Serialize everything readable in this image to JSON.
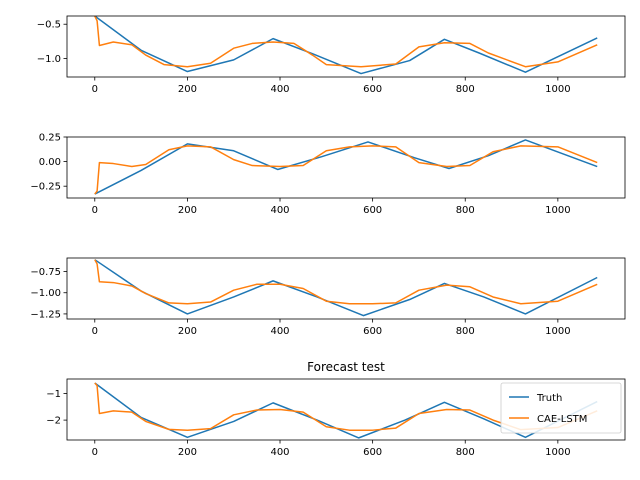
{
  "chart_data": [
    {
      "type": "line",
      "title": "",
      "xlim": [
        -60,
        1145
      ],
      "ylim": [
        -1.27,
        -0.38
      ],
      "xticks": [
        0,
        200,
        400,
        600,
        800,
        1000
      ],
      "yticks": [
        -0.5,
        -1.0
      ],
      "ytick_labels": [
        "−0.5",
        "−1.0"
      ],
      "series": [
        {
          "name": "Truth",
          "color": "#1f77b4",
          "x": [
            0,
            100,
            200,
            300,
            385,
            470,
            575,
            680,
            755,
            830,
            930,
            1085
          ],
          "y": [
            -0.38,
            -0.88,
            -1.19,
            -1.02,
            -0.71,
            -0.93,
            -1.22,
            -1.03,
            -0.72,
            -0.92,
            -1.2,
            -0.7
          ]
        },
        {
          "name": "CAE-LSTM",
          "color": "#ff7f0e",
          "x": [
            0,
            5,
            10,
            40,
            80,
            110,
            150,
            200,
            250,
            300,
            340,
            385,
            430,
            470,
            500,
            575,
            650,
            700,
            755,
            810,
            850,
            930,
            1000,
            1085
          ],
          "y": [
            -0.38,
            -0.45,
            -0.81,
            -0.76,
            -0.8,
            -0.95,
            -1.09,
            -1.12,
            -1.07,
            -0.85,
            -0.78,
            -0.76,
            -0.78,
            -0.95,
            -1.09,
            -1.12,
            -1.08,
            -0.83,
            -0.77,
            -0.78,
            -0.92,
            -1.12,
            -1.05,
            -0.8
          ]
        }
      ]
    },
    {
      "type": "line",
      "title": "",
      "xlim": [
        -60,
        1145
      ],
      "ylim": [
        -0.37,
        0.25
      ],
      "xticks": [
        0,
        200,
        400,
        600,
        800,
        1000
      ],
      "yticks": [
        0.25,
        0.0,
        -0.25
      ],
      "ytick_labels": [
        "0.25",
        "0.00",
        "−0.25"
      ],
      "series": [
        {
          "name": "Truth",
          "color": "#1f77b4",
          "x": [
            0,
            100,
            200,
            300,
            395,
            490,
            590,
            690,
            765,
            850,
            930,
            1085
          ],
          "y": [
            -0.33,
            -0.09,
            0.18,
            0.11,
            -0.08,
            0.05,
            0.2,
            0.04,
            -0.07,
            0.06,
            0.22,
            -0.05
          ]
        },
        {
          "name": "CAE-LSTM",
          "color": "#ff7f0e",
          "x": [
            0,
            5,
            10,
            40,
            80,
            110,
            160,
            200,
            250,
            300,
            340,
            400,
            450,
            500,
            550,
            600,
            650,
            700,
            760,
            810,
            860,
            920,
            1000,
            1085
          ],
          "y": [
            -0.33,
            -0.3,
            -0.01,
            -0.02,
            -0.05,
            -0.03,
            0.12,
            0.16,
            0.15,
            0.02,
            -0.04,
            -0.05,
            -0.04,
            0.11,
            0.15,
            0.16,
            0.15,
            -0.01,
            -0.05,
            -0.04,
            0.1,
            0.16,
            0.15,
            -0.01
          ]
        }
      ]
    },
    {
      "type": "line",
      "title": "",
      "xlim": [
        -60,
        1145
      ],
      "ylim": [
        -1.31,
        -0.59
      ],
      "xticks": [
        0,
        200,
        400,
        600,
        800,
        1000
      ],
      "yticks": [
        -0.75,
        -1.0,
        -1.25
      ],
      "ytick_labels": [
        "−0.75",
        "−1.00",
        "−1.25"
      ],
      "series": [
        {
          "name": "Truth",
          "color": "#1f77b4",
          "x": [
            0,
            100,
            200,
            300,
            385,
            480,
            580,
            680,
            755,
            840,
            930,
            1085
          ],
          "y": [
            -0.61,
            -0.98,
            -1.25,
            -1.05,
            -0.86,
            -1.05,
            -1.27,
            -1.08,
            -0.89,
            -1.05,
            -1.25,
            -0.82
          ]
        },
        {
          "name": "CAE-LSTM",
          "color": "#ff7f0e",
          "x": [
            0,
            5,
            10,
            40,
            80,
            110,
            160,
            200,
            250,
            300,
            350,
            400,
            450,
            500,
            550,
            600,
            650,
            700,
            760,
            810,
            860,
            920,
            1000,
            1085
          ],
          "y": [
            -0.61,
            -0.66,
            -0.87,
            -0.88,
            -0.92,
            -1.01,
            -1.12,
            -1.13,
            -1.11,
            -0.97,
            -0.9,
            -0.9,
            -0.95,
            -1.1,
            -1.13,
            -1.13,
            -1.12,
            -0.97,
            -0.91,
            -0.93,
            -1.05,
            -1.13,
            -1.1,
            -0.9
          ]
        }
      ]
    },
    {
      "type": "line",
      "title": "Forecast test",
      "xlim": [
        -60,
        1145
      ],
      "ylim": [
        -2.75,
        -0.45
      ],
      "xticks": [
        0,
        200,
        400,
        600,
        800,
        1000
      ],
      "yticks": [
        -1,
        -2
      ],
      "ytick_labels": [
        "−1",
        "−2"
      ],
      "legend": "right",
      "series": [
        {
          "name": "Truth",
          "color": "#1f77b4",
          "x": [
            0,
            100,
            200,
            300,
            385,
            480,
            570,
            670,
            755,
            840,
            930,
            1085
          ],
          "y": [
            -0.6,
            -1.9,
            -2.65,
            -2.05,
            -1.35,
            -2.0,
            -2.67,
            -2.0,
            -1.33,
            -1.95,
            -2.65,
            -1.3
          ]
        },
        {
          "name": "CAE-LSTM",
          "color": "#ff7f0e",
          "x": [
            0,
            5,
            10,
            40,
            80,
            110,
            160,
            200,
            250,
            300,
            350,
            400,
            450,
            500,
            550,
            600,
            650,
            700,
            760,
            810,
            860,
            920,
            1000,
            1085
          ],
          "y": [
            -0.6,
            -0.7,
            -1.75,
            -1.65,
            -1.7,
            -2.05,
            -2.35,
            -2.38,
            -2.32,
            -1.8,
            -1.62,
            -1.6,
            -1.7,
            -2.25,
            -2.38,
            -2.38,
            -2.3,
            -1.75,
            -1.6,
            -1.62,
            -2.0,
            -2.36,
            -2.28,
            -1.65
          ]
        }
      ]
    }
  ]
}
